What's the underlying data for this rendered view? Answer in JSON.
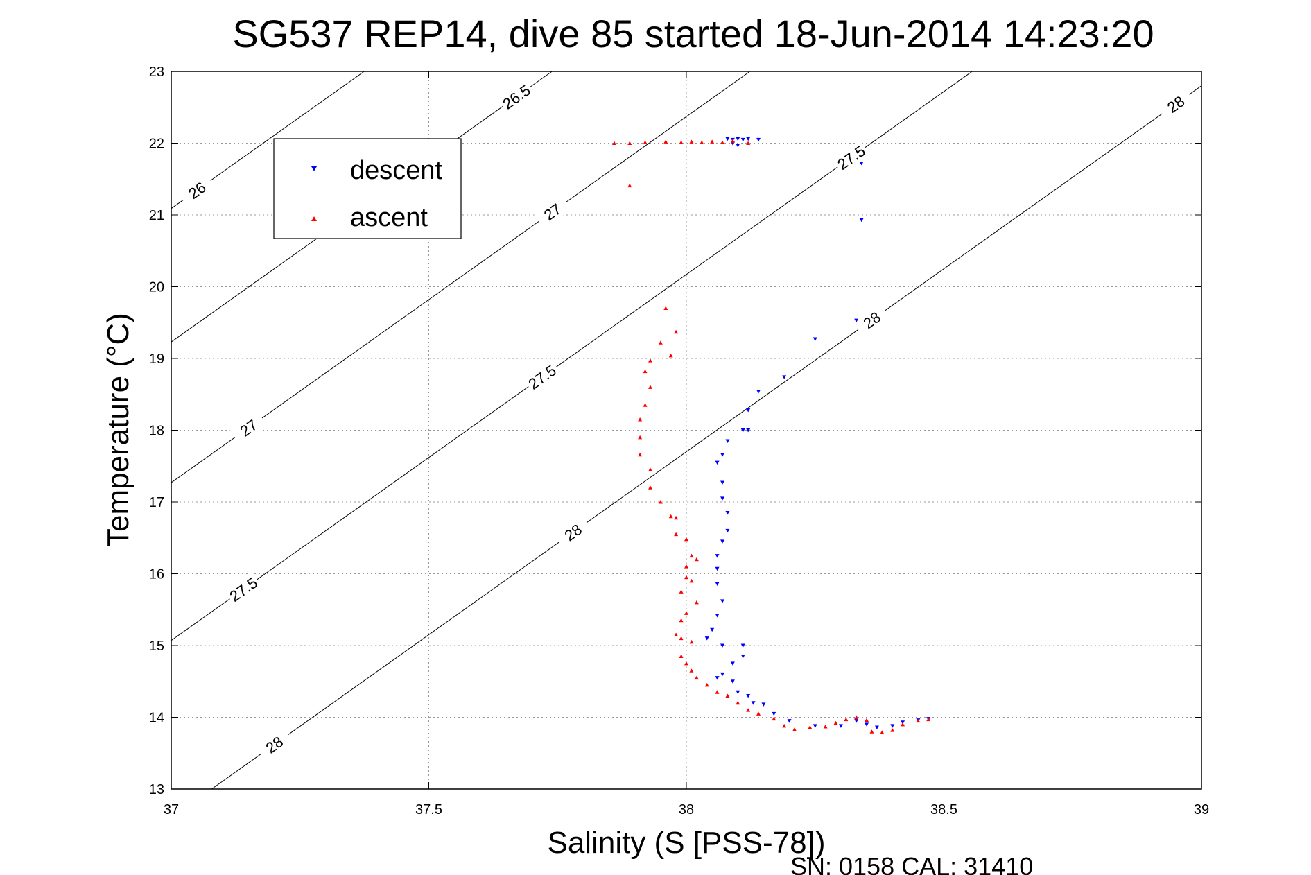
{
  "chart_data": {
    "type": "scatter",
    "title": "SG537 REP14, dive 85 started 18-Jun-2014 14:23:20",
    "xlabel": "Salinity (S [PSS-78])",
    "ylabel": "Temperature (°C)",
    "footer": "SN: 0158  CAL: 31410",
    "xlim": [
      37,
      39
    ],
    "ylim": [
      13,
      23
    ],
    "xticks": [
      "37",
      "37.5",
      "38",
      "38.5",
      "39"
    ],
    "yticks": [
      "13",
      "14",
      "15",
      "16",
      "17",
      "18",
      "19",
      "20",
      "21",
      "22",
      "23"
    ],
    "grid": true,
    "legend_position": "top-left",
    "series": [
      {
        "name": "descent",
        "color": "#0000ff",
        "marker": "triangle-down",
        "points": [
          [
            38.08,
            22.06
          ],
          [
            38.09,
            22.05
          ],
          [
            38.1,
            22.06
          ],
          [
            38.11,
            22.05
          ],
          [
            38.12,
            22.06
          ],
          [
            38.14,
            22.05
          ],
          [
            38.09,
            22.0
          ],
          [
            38.1,
            21.97
          ],
          [
            38.34,
            21.72
          ],
          [
            38.34,
            20.93
          ],
          [
            38.33,
            19.53
          ],
          [
            38.25,
            19.27
          ],
          [
            38.19,
            18.74
          ],
          [
            38.14,
            18.54
          ],
          [
            38.12,
            18.28
          ],
          [
            38.12,
            18.0
          ],
          [
            38.11,
            18.0
          ],
          [
            38.08,
            17.85
          ],
          [
            38.07,
            17.66
          ],
          [
            38.06,
            17.55
          ],
          [
            38.07,
            17.27
          ],
          [
            38.07,
            17.05
          ],
          [
            38.08,
            16.85
          ],
          [
            38.08,
            16.6
          ],
          [
            38.07,
            16.45
          ],
          [
            38.06,
            16.25
          ],
          [
            38.06,
            16.07
          ],
          [
            38.06,
            15.86
          ],
          [
            38.07,
            15.62
          ],
          [
            38.06,
            15.42
          ],
          [
            38.05,
            15.22
          ],
          [
            38.04,
            15.1
          ],
          [
            38.07,
            15.0
          ],
          [
            38.11,
            15.0
          ],
          [
            38.11,
            14.85
          ],
          [
            38.09,
            14.75
          ],
          [
            38.07,
            14.6
          ],
          [
            38.06,
            14.55
          ],
          [
            38.09,
            14.5
          ],
          [
            38.1,
            14.35
          ],
          [
            38.12,
            14.3
          ],
          [
            38.13,
            14.2
          ],
          [
            38.15,
            14.18
          ],
          [
            38.17,
            14.05
          ],
          [
            38.2,
            13.95
          ],
          [
            38.25,
            13.88
          ],
          [
            38.3,
            13.88
          ],
          [
            38.33,
            13.95
          ],
          [
            38.35,
            13.9
          ],
          [
            38.37,
            13.86
          ],
          [
            38.4,
            13.88
          ],
          [
            38.42,
            13.93
          ],
          [
            38.45,
            13.96
          ],
          [
            38.47,
            13.98
          ]
        ]
      },
      {
        "name": "ascent",
        "color": "#ff0000",
        "marker": "triangle-up",
        "points": [
          [
            37.86,
            22.0
          ],
          [
            37.89,
            22.0
          ],
          [
            37.92,
            22.01
          ],
          [
            37.96,
            22.02
          ],
          [
            37.99,
            22.01
          ],
          [
            38.01,
            22.02
          ],
          [
            38.03,
            22.01
          ],
          [
            38.05,
            22.02
          ],
          [
            38.07,
            22.01
          ],
          [
            38.09,
            22.03
          ],
          [
            38.12,
            22.0
          ],
          [
            37.89,
            21.41
          ],
          [
            37.96,
            19.7
          ],
          [
            37.98,
            19.37
          ],
          [
            37.95,
            19.22
          ],
          [
            37.97,
            19.04
          ],
          [
            37.93,
            18.97
          ],
          [
            37.92,
            18.82
          ],
          [
            37.93,
            18.6
          ],
          [
            37.92,
            18.35
          ],
          [
            37.91,
            18.15
          ],
          [
            37.91,
            17.9
          ],
          [
            37.91,
            17.66
          ],
          [
            37.93,
            17.45
          ],
          [
            37.93,
            17.2
          ],
          [
            37.95,
            17.0
          ],
          [
            37.97,
            16.8
          ],
          [
            37.98,
            16.78
          ],
          [
            37.98,
            16.55
          ],
          [
            38.0,
            16.48
          ],
          [
            38.01,
            16.25
          ],
          [
            38.02,
            16.2
          ],
          [
            38.0,
            16.1
          ],
          [
            38.0,
            15.95
          ],
          [
            38.01,
            15.9
          ],
          [
            37.99,
            15.75
          ],
          [
            38.02,
            15.6
          ],
          [
            38.0,
            15.45
          ],
          [
            37.99,
            15.35
          ],
          [
            37.98,
            15.15
          ],
          [
            37.99,
            15.1
          ],
          [
            38.01,
            15.05
          ],
          [
            37.99,
            14.85
          ],
          [
            38.0,
            14.75
          ],
          [
            38.01,
            14.65
          ],
          [
            38.02,
            14.55
          ],
          [
            38.04,
            14.45
          ],
          [
            38.06,
            14.35
          ],
          [
            38.08,
            14.3
          ],
          [
            38.1,
            14.2
          ],
          [
            38.12,
            14.1
          ],
          [
            38.14,
            14.05
          ],
          [
            38.17,
            13.98
          ],
          [
            38.19,
            13.88
          ],
          [
            38.21,
            13.83
          ],
          [
            38.24,
            13.86
          ],
          [
            38.27,
            13.87
          ],
          [
            38.29,
            13.92
          ],
          [
            38.31,
            13.97
          ],
          [
            38.33,
            14.0
          ],
          [
            38.35,
            13.96
          ],
          [
            38.36,
            13.8
          ],
          [
            38.38,
            13.79
          ],
          [
            38.4,
            13.82
          ],
          [
            38.42,
            13.9
          ],
          [
            38.45,
            13.95
          ],
          [
            38.47,
            13.97
          ]
        ]
      }
    ],
    "isopycnals": [
      {
        "label": "26",
        "labels_at_x": [
          37.05,
          37.66
        ]
      },
      {
        "label": "26.5",
        "labels_at_x": [
          37.67,
          38.27
        ]
      },
      {
        "label": "27",
        "labels_at_x": [
          37.15,
          37.74,
          38.34,
          38.95
        ]
      },
      {
        "label": "27.5",
        "labels_at_x": [
          37.14,
          37.72,
          38.32,
          38.92
        ]
      },
      {
        "label": "28",
        "labels_at_x": [
          37.2,
          37.78,
          38.36,
          38.95
        ]
      }
    ]
  }
}
